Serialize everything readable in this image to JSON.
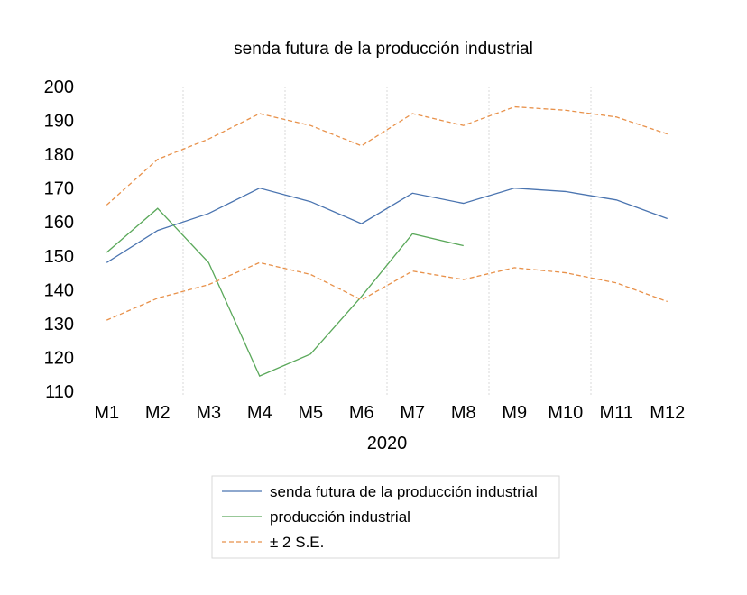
{
  "chart_data": {
    "type": "line",
    "title": "senda futura de la producción industrial",
    "xlabel": "2020",
    "ylabel": "",
    "categories": [
      "M1",
      "M2",
      "M3",
      "M4",
      "M5",
      "M6",
      "M7",
      "M8",
      "M9",
      "M10",
      "M11",
      "M12"
    ],
    "ylim": [
      110,
      200
    ],
    "yticks": [
      110,
      120,
      130,
      140,
      150,
      160,
      170,
      180,
      190,
      200
    ],
    "grid": "vertical-dotted",
    "legend_position": "bottom",
    "series": [
      {
        "name": "senda futura de la producción industrial",
        "color": "#4a74b0",
        "dash": false,
        "values": [
          148,
          157.5,
          162.5,
          170,
          166,
          159.5,
          168.5,
          165.5,
          170,
          169,
          166.5,
          161
        ]
      },
      {
        "name": "producción industrial",
        "color": "#5aa85a",
        "dash": false,
        "values": [
          151,
          164,
          148,
          114.5,
          121,
          138,
          156.5,
          153,
          null,
          null,
          null,
          null
        ]
      },
      {
        "name": "± 2 S.E.",
        "color": "#e8914a",
        "dash": true,
        "values": [
          165,
          178.5,
          184.5,
          192,
          188.5,
          182.5,
          192,
          188.5,
          194,
          193,
          191,
          186
        ]
      },
      {
        "name": "",
        "color": "#e8914a",
        "dash": true,
        "values": [
          131,
          137.5,
          141.5,
          148,
          144.5,
          137,
          145.5,
          143,
          146.5,
          145,
          142,
          136.5
        ]
      }
    ],
    "legend": [
      {
        "label": "senda futura de la producción industrial",
        "color": "#4a74b0",
        "dash": false
      },
      {
        "label": "producción industrial",
        "color": "#5aa85a",
        "dash": false
      },
      {
        "label": "± 2 S.E.",
        "color": "#e8914a",
        "dash": true
      }
    ]
  }
}
